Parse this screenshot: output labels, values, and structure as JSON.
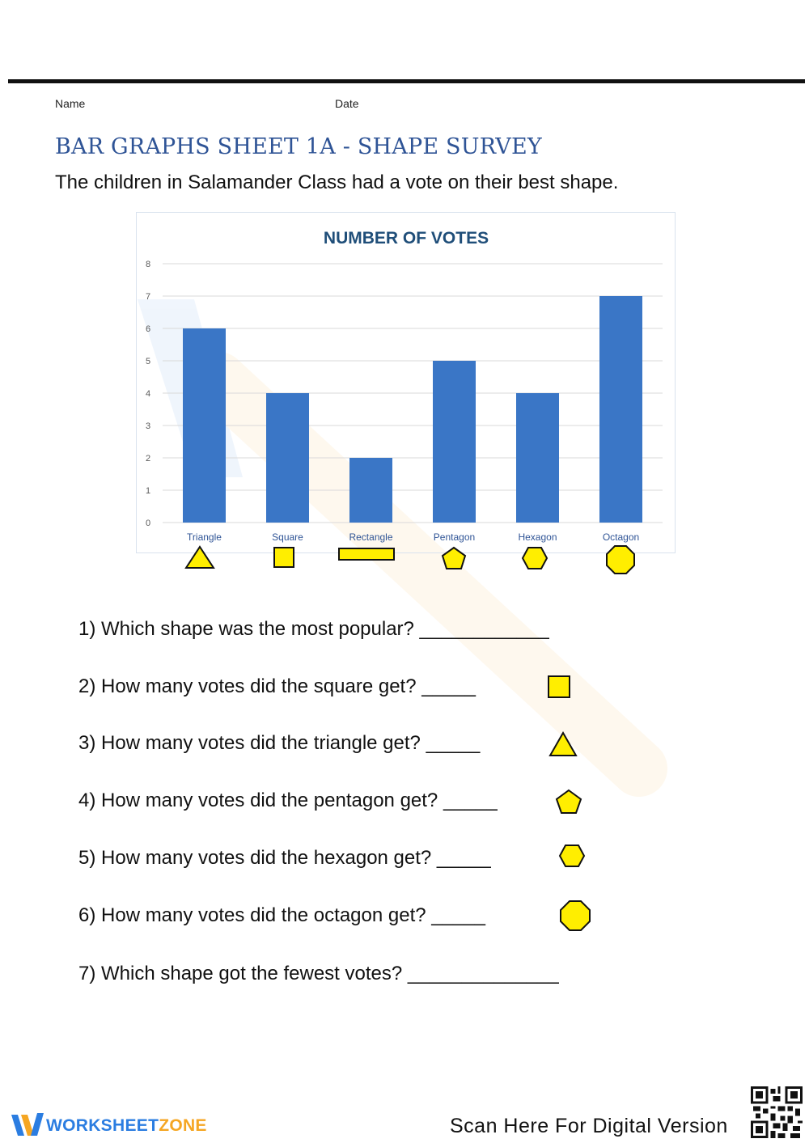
{
  "header": {
    "name_label": "Name",
    "date_label": "Date",
    "title": "BAR GRAPHS SHEET 1A - SHAPE SURVEY",
    "intro": "The children in Salamander Class had a vote on their best shape."
  },
  "chart_data": {
    "type": "bar",
    "title": "NUMBER OF VOTES",
    "categories": [
      "Triangle",
      "Square",
      "Rectangle",
      "Pentagon",
      "Hexagon",
      "Octagon"
    ],
    "values": [
      6,
      4,
      2,
      5,
      4,
      7
    ],
    "ylim": [
      0,
      8
    ],
    "yticks": [
      0,
      1,
      2,
      3,
      4,
      5,
      6,
      7,
      8
    ],
    "xlabel": "",
    "ylabel": "",
    "grid": true,
    "bar_color": "#3a76c6",
    "shape_icons": [
      "triangle-icon",
      "square-icon",
      "rectangle-icon",
      "pentagon-icon",
      "hexagon-icon",
      "octagon-icon"
    ]
  },
  "questions": [
    {
      "text": "1) Which shape was the most popular? ____________"
    },
    {
      "text": "2) How many votes did the square get? _____",
      "icon": "square-icon"
    },
    {
      "text": "3) How many votes did the triangle get? _____",
      "icon": "triangle-icon"
    },
    {
      "text": "4) How many votes did the pentagon get? _____",
      "icon": "pentagon-icon"
    },
    {
      "text": "5) How many votes did the hexagon get? _____",
      "icon": "hexagon-icon"
    },
    {
      "text": "6) How many votes did the octagon get? _____",
      "icon": "octagon-icon"
    },
    {
      "text": "7) Which shape got the fewest votes? ______________"
    }
  ],
  "colors": {
    "shape_fill": "#ffee00",
    "title_blue": "#2f5496",
    "chart_title": "#1f4e79"
  },
  "footer": {
    "logo_primary": "WORKSHEET",
    "logo_secondary": "ZONE",
    "scan_text": "Scan Here For Digital Version"
  }
}
